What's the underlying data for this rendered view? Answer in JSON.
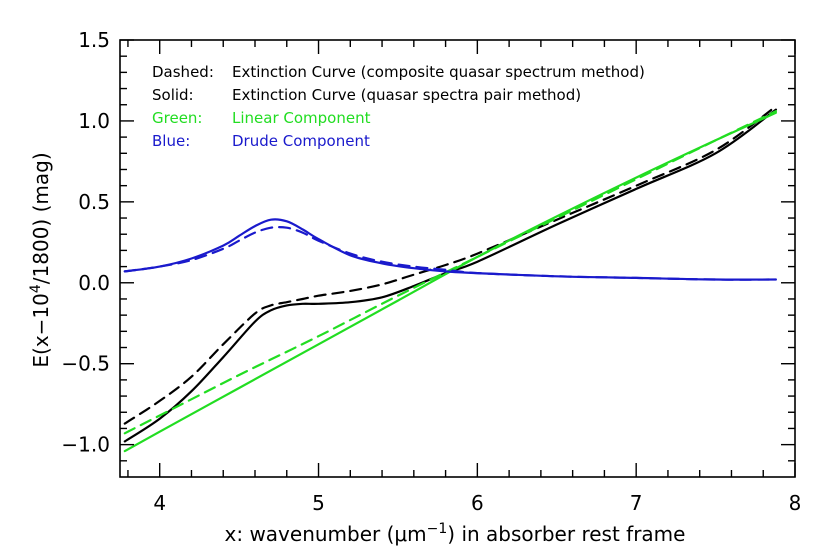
{
  "chart_data": {
    "type": "line",
    "xlabel_parts": [
      "x: wavenumber (",
      "μm",
      "−1",
      ") in absorber rest frame"
    ],
    "ylabel_parts": [
      "E(x−10",
      "4",
      "/1800) (mag)"
    ],
    "xlim": [
      3.75,
      8.0
    ],
    "ylim": [
      -1.2,
      1.5
    ],
    "x_ticks": [
      4,
      5,
      6,
      7,
      8
    ],
    "x_tick_labels": [
      "4",
      "5",
      "6",
      "7",
      "8"
    ],
    "y_ticks": [
      -1.0,
      -0.5,
      0.0,
      0.5,
      1.0,
      1.5
    ],
    "y_tick_labels": [
      "−1.0",
      "−0.5",
      "0.0",
      "0.5",
      "1.0",
      "1.5"
    ],
    "grid": false,
    "legend": [
      {
        "label": "Dashed:",
        "text": "Extinction Curve (composite quasar spectrum method)",
        "color": "#000000"
      },
      {
        "label": "Solid:",
        "text": "Extinction Curve (quasar spectra pair method)",
        "color": "#000000"
      },
      {
        "label": "Green:",
        "text": "Linear Component",
        "color": "#22dd22"
      },
      {
        "label": "Blue:",
        "text": "Drude Component",
        "color": "#1a1acc"
      }
    ],
    "series": [
      {
        "style": "dashed",
        "color": "#000000",
        "x": [
          3.78,
          4.0,
          4.2,
          4.4,
          4.6,
          4.7,
          4.8,
          4.9,
          5.0,
          5.2,
          5.4,
          5.6,
          5.8,
          6.0,
          6.5,
          7.0,
          7.5,
          7.88
        ],
        "y": [
          -0.87,
          -0.73,
          -0.58,
          -0.38,
          -0.19,
          -0.14,
          -0.12,
          -0.1,
          -0.08,
          -0.05,
          -0.01,
          0.05,
          0.11,
          0.18,
          0.39,
          0.6,
          0.82,
          1.09
        ]
      },
      {
        "style": "solid",
        "color": "#000000",
        "x": [
          3.78,
          4.0,
          4.2,
          4.4,
          4.6,
          4.7,
          4.8,
          4.9,
          5.0,
          5.2,
          5.4,
          5.6,
          5.8,
          6.0,
          6.5,
          7.0,
          7.5,
          7.88
        ],
        "y": [
          -0.98,
          -0.84,
          -0.67,
          -0.46,
          -0.24,
          -0.17,
          -0.14,
          -0.13,
          -0.13,
          -0.12,
          -0.09,
          -0.02,
          0.06,
          0.13,
          0.36,
          0.58,
          0.8,
          1.07
        ]
      },
      {
        "style": "dashed",
        "color": "#22dd22",
        "x": [
          3.78,
          4.0,
          4.5,
          5.0,
          5.5,
          6.0,
          6.5,
          7.0,
          7.5,
          7.88
        ],
        "y": [
          -0.93,
          -0.82,
          -0.57,
          -0.33,
          -0.08,
          0.16,
          0.4,
          0.64,
          0.88,
          1.06
        ]
      },
      {
        "style": "solid",
        "color": "#22dd22",
        "x": [
          3.78,
          4.0,
          4.5,
          5.0,
          5.5,
          6.0,
          6.5,
          7.0,
          7.5,
          7.88
        ],
        "y": [
          -1.04,
          -0.92,
          -0.65,
          -0.38,
          -0.11,
          0.16,
          0.41,
          0.65,
          0.88,
          1.05
        ]
      },
      {
        "style": "dashed",
        "color": "#1a1acc",
        "x": [
          3.78,
          4.0,
          4.2,
          4.4,
          4.5,
          4.6,
          4.7,
          4.8,
          4.9,
          5.0,
          5.2,
          5.4,
          5.6,
          5.8,
          6.0,
          6.5,
          7.0,
          7.5,
          7.88
        ],
        "y": [
          0.07,
          0.1,
          0.14,
          0.21,
          0.26,
          0.31,
          0.34,
          0.34,
          0.31,
          0.26,
          0.18,
          0.13,
          0.1,
          0.08,
          0.06,
          0.04,
          0.03,
          0.02,
          0.02
        ]
      },
      {
        "style": "solid",
        "color": "#1a1acc",
        "x": [
          3.78,
          4.0,
          4.2,
          4.4,
          4.5,
          4.6,
          4.7,
          4.8,
          4.9,
          5.0,
          5.2,
          5.4,
          5.6,
          5.8,
          6.0,
          6.5,
          7.0,
          7.5,
          7.88
        ],
        "y": [
          0.07,
          0.1,
          0.15,
          0.23,
          0.29,
          0.35,
          0.39,
          0.38,
          0.33,
          0.27,
          0.17,
          0.12,
          0.09,
          0.07,
          0.06,
          0.04,
          0.03,
          0.02,
          0.02
        ]
      }
    ]
  }
}
